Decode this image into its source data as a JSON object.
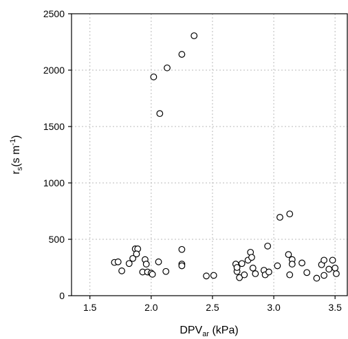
{
  "chart_data": {
    "type": "scatter",
    "xlabel": {
      "main": "DPV",
      "sub": "ar",
      "rest": " (kPa)"
    },
    "ylabel": {
      "main": "r",
      "sub": "s",
      "mid": "(s m",
      "sup": "-1",
      "end": ")"
    },
    "xlim": [
      1.35,
      3.6
    ],
    "ylim": [
      0,
      2500
    ],
    "xticks": [
      "1.5",
      "2.0",
      "2.5",
      "3.0",
      "3.5"
    ],
    "xtick_values": [
      1.5,
      2.0,
      2.5,
      3.0,
      3.5
    ],
    "yticks": [
      "0",
      "500",
      "1000",
      "1500",
      "2000",
      "2500"
    ],
    "ytick_values": [
      0,
      500,
      1000,
      1500,
      2000,
      2500
    ],
    "grid": true,
    "marker": "open-circle",
    "points": [
      [
        1.7,
        295
      ],
      [
        1.73,
        300
      ],
      [
        1.76,
        220
      ],
      [
        1.82,
        285
      ],
      [
        1.85,
        330
      ],
      [
        1.87,
        415
      ],
      [
        1.89,
        415
      ],
      [
        1.88,
        370
      ],
      [
        1.93,
        210
      ],
      [
        1.95,
        320
      ],
      [
        1.96,
        280
      ],
      [
        1.97,
        210
      ],
      [
        2.0,
        200
      ],
      [
        2.01,
        190
      ],
      [
        2.02,
        1940
      ],
      [
        2.06,
        300
      ],
      [
        2.07,
        1615
      ],
      [
        2.12,
        215
      ],
      [
        2.13,
        2020
      ],
      [
        2.25,
        2140
      ],
      [
        2.25,
        410
      ],
      [
        2.25,
        280
      ],
      [
        2.25,
        265
      ],
      [
        2.35,
        2305
      ],
      [
        2.45,
        175
      ],
      [
        2.51,
        180
      ],
      [
        2.69,
        280
      ],
      [
        2.7,
        215
      ],
      [
        2.7,
        250
      ],
      [
        2.72,
        160
      ],
      [
        2.74,
        285
      ],
      [
        2.76,
        185
      ],
      [
        2.79,
        315
      ],
      [
        2.81,
        385
      ],
      [
        2.82,
        340
      ],
      [
        2.83,
        245
      ],
      [
        2.85,
        195
      ],
      [
        2.92,
        225
      ],
      [
        2.93,
        185
      ],
      [
        2.95,
        440
      ],
      [
        2.96,
        210
      ],
      [
        3.03,
        265
      ],
      [
        3.05,
        695
      ],
      [
        3.12,
        365
      ],
      [
        3.13,
        725
      ],
      [
        3.13,
        185
      ],
      [
        3.15,
        320
      ],
      [
        3.15,
        280
      ],
      [
        3.23,
        290
      ],
      [
        3.27,
        205
      ],
      [
        3.35,
        155
      ],
      [
        3.39,
        275
      ],
      [
        3.41,
        315
      ],
      [
        3.41,
        180
      ],
      [
        3.45,
        235
      ],
      [
        3.48,
        315
      ],
      [
        3.5,
        245
      ],
      [
        3.51,
        195
      ]
    ]
  }
}
